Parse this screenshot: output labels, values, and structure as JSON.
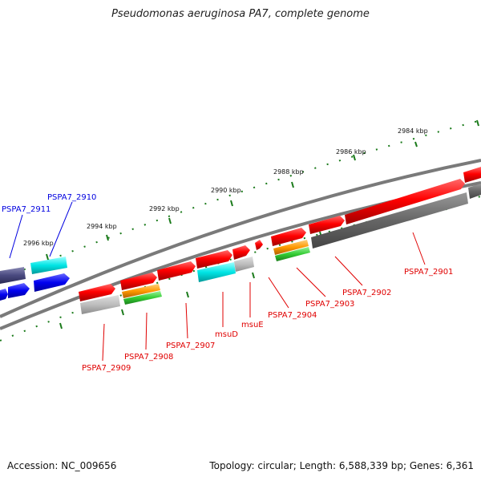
{
  "title": "Pseudomonas aeruginosa PA7, complete genome",
  "accession": "Accession: NC_009656",
  "topology": "Topology: circular; Length: 6,588,339 bp; Genes: 6,361",
  "scale_labels": [
    "2984 kbp",
    "2986 kbp",
    "2988 kbp",
    "2990 kbp",
    "2992 kbp",
    "2994 kbp",
    "2996 kbp"
  ],
  "genes_top_labels": [
    "PSPA7_2911",
    "PSPA7_2910"
  ],
  "genes_bottom_labels": [
    "PSPA7_2909",
    "PSPA7_2908",
    "PSPA7_2907",
    "msuD",
    "msuE",
    "PSPA7_2904",
    "PSPA7_2903",
    "PSPA7_2902",
    "PSPA7_2901"
  ],
  "colors": {
    "forward_gene": "#e00000",
    "annotation_blue": "#0000e0",
    "cyan_feature": "#00e5e5",
    "dark_feature": "#4a4a80",
    "orange_feature": "#ff9900",
    "green_feature": "#33cc33",
    "gray_feature": "#666666",
    "tick_color": "#1a7a1a"
  }
}
